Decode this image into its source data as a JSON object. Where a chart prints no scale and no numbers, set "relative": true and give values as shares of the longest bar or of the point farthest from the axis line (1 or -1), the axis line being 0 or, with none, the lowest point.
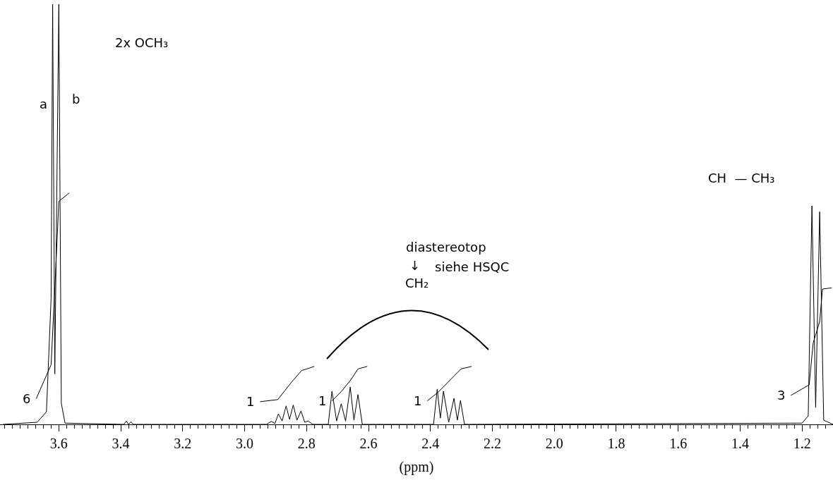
{
  "chart_data": {
    "type": "line",
    "relative": true,
    "xlabel": "(ppm)",
    "marker": "none",
    "line_style": "solid",
    "xlim": [
      3.79,
      1.1
    ],
    "xticks": [
      3.6,
      3.4,
      3.2,
      {
        "value": 3.0,
        "label": "3.0"
      },
      2.8,
      2.6,
      2.4,
      2.2,
      {
        "value": 2.0,
        "label": "2.0"
      },
      1.8,
      1.6,
      1.4,
      1.2
    ],
    "series": [
      {
        "color": "#000000",
        "x": [
          3.78,
          3.67,
          3.64,
          3.625,
          3.62,
          3.613,
          3.6,
          3.592,
          3.58,
          3.39,
          3.382,
          3.375,
          3.367,
          3.36,
          2.93,
          2.914,
          2.902,
          2.891,
          2.879,
          2.866,
          2.855,
          2.843,
          2.831,
          2.818,
          2.806,
          2.795,
          2.78,
          2.73,
          2.718,
          2.703,
          2.688,
          2.674,
          2.659,
          2.647,
          2.634,
          2.62,
          2.39,
          2.378,
          2.368,
          2.358,
          2.341,
          2.324,
          2.313,
          2.303,
          2.29,
          1.2,
          1.18,
          1.168,
          1.156,
          1.143,
          1.13,
          1.1
        ],
        "values": [
          0,
          0.005,
          0.03,
          0.3,
          1,
          0.12,
          1,
          0.05,
          0.003,
          0,
          0.008,
          0,
          0.006,
          0,
          0,
          0.007,
          0.002,
          0.025,
          0.008,
          0.044,
          0.012,
          0.046,
          0.01,
          0.032,
          0.005,
          0.008,
          0,
          0,
          0.079,
          0.008,
          0.049,
          0.008,
          0.089,
          0.01,
          0.071,
          0,
          0,
          0.084,
          0.015,
          0.079,
          0.005,
          0.062,
          0.01,
          0.057,
          0,
          0.003,
          0.02,
          0.52,
          0.04,
          0.506,
          0.01,
          0
        ]
      },
      {
        "color": "#000000",
        "x": [
          3.673,
          3.625,
          3.611,
          3.6,
          3.566
        ],
        "values": [
          0.061,
          0.142,
          0.354,
          0.531,
          0.551
        ]
      },
      {
        "color": "#000000",
        "x": [
          2.95,
          2.893,
          2.848,
          2.816,
          2.775
        ],
        "values": [
          0.054,
          0.059,
          0.101,
          0.128,
          0.138
        ]
      },
      {
        "color": "#000000",
        "x": [
          2.718,
          2.688,
          2.657,
          2.634,
          2.604
        ],
        "values": [
          0.056,
          0.078,
          0.106,
          0.132,
          0.138
        ]
      },
      {
        "color": "#000000",
        "x": [
          2.41,
          2.376,
          2.324,
          2.301,
          2.267
        ],
        "values": [
          0.056,
          0.076,
          0.115,
          0.132,
          0.138
        ]
      },
      {
        "color": "#000000",
        "x": [
          1.236,
          1.177,
          1.164,
          1.143,
          1.134,
          1.104
        ],
        "values": [
          0.069,
          0.094,
          0.194,
          0.245,
          0.322,
          0.325
        ]
      }
    ],
    "annotations": [
      "2x OCH₃",
      "a",
      "b",
      {
        "text": "6",
        "x": 3.673,
        "y": 0.061
      },
      {
        "text": "1",
        "x": 2.95,
        "y": 0.054
      },
      {
        "text": "1",
        "x": 2.718,
        "y": 0.056
      },
      {
        "text": "1",
        "x": 2.41,
        "y": 0.056
      },
      {
        "text": "3",
        "x": 1.236,
        "y": 0.069
      },
      "CH  — CH₃",
      "diastereotop",
      "↓",
      "siehe HSQC",
      "CH₂"
    ]
  }
}
